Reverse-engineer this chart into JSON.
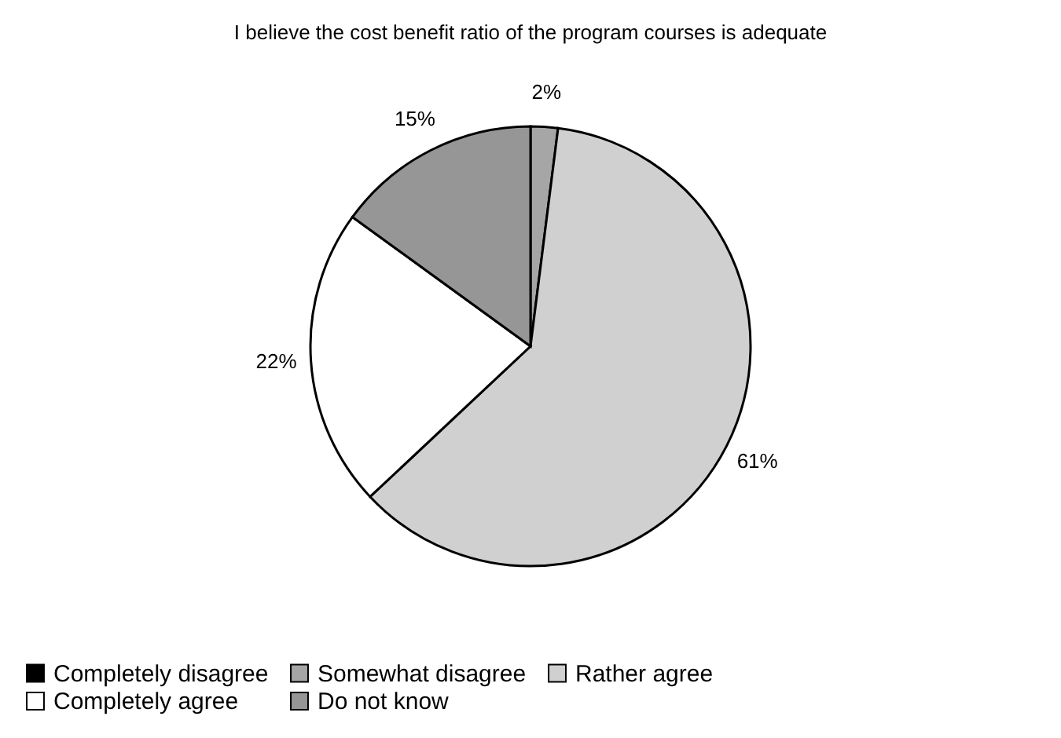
{
  "chart_data": {
    "type": "pie",
    "title": "I believe the cost benefit ratio of the program courses is adequate",
    "categories": [
      "Completely disagree",
      "Somewhat disagree",
      "Rather agree",
      "Completely agree",
      "Do not know"
    ],
    "values": [
      0,
      2,
      61,
      22,
      15
    ],
    "colors": [
      "#000000",
      "#a6a6a6",
      "#d0d0d0",
      "#ffffff",
      "#969696"
    ],
    "value_labels": [
      null,
      "2%",
      "61%",
      "22%",
      "15%"
    ],
    "legend": "bottom"
  }
}
